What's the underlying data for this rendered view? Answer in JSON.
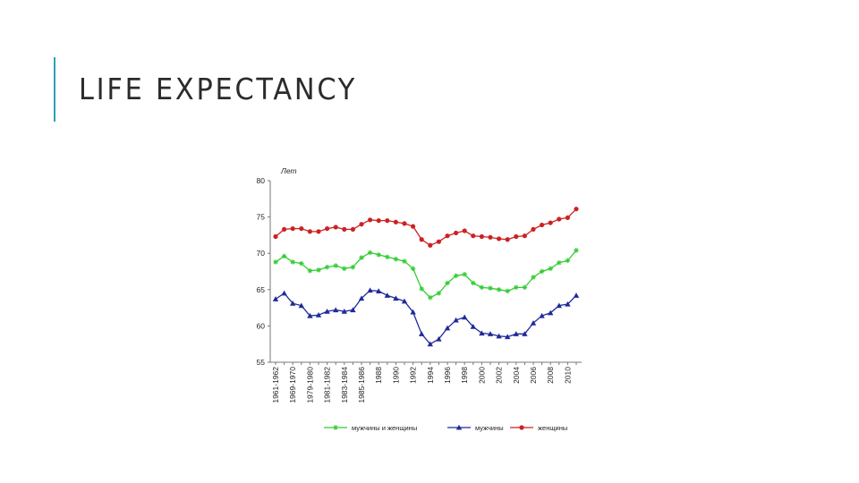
{
  "slide": {
    "title": "LIFE EXPECTANCY",
    "accent_color": "#2aa3b8"
  },
  "chart_data": {
    "type": "line",
    "title": "",
    "ylabel": "Лет",
    "xlabel": "",
    "ylim": [
      55,
      80
    ],
    "yticks": [
      55,
      60,
      65,
      70,
      75,
      80
    ],
    "grid": false,
    "legend_position": "bottom",
    "categories": [
      "1961-1962",
      "",
      "1969-1970",
      "",
      "1979-1980",
      "",
      "1981-1982",
      "",
      "1983-1984",
      "",
      "1985-1986",
      "",
      "1988",
      "",
      "1990",
      "",
      "1992",
      "",
      "1994",
      "",
      "1996",
      "",
      "1998",
      "",
      "2000",
      "",
      "2002",
      "",
      "2004",
      "",
      "2006",
      "",
      "2008",
      "",
      "2010",
      ""
    ],
    "series": [
      {
        "name": "мужчины и женщины",
        "color": "#33cc33",
        "marker": "star",
        "values": [
          68.8,
          69.6,
          68.8,
          68.6,
          67.6,
          67.7,
          68.1,
          68.3,
          67.9,
          68.1,
          69.4,
          70.1,
          69.8,
          69.5,
          69.2,
          68.9,
          67.9,
          65.1,
          63.9,
          64.5,
          65.9,
          66.9,
          67.1,
          65.9,
          65.3,
          65.2,
          65.0,
          64.8,
          65.3,
          65.3,
          66.7,
          67.5,
          67.9,
          68.7,
          69.0,
          70.4
        ]
      },
      {
        "name": "мужчины",
        "color": "#1f2a99",
        "marker": "triangle",
        "values": [
          63.7,
          64.5,
          63.1,
          62.8,
          61.4,
          61.5,
          62.0,
          62.2,
          62.0,
          62.2,
          63.8,
          64.9,
          64.8,
          64.2,
          63.8,
          63.4,
          61.9,
          58.9,
          57.5,
          58.2,
          59.7,
          60.8,
          61.2,
          59.9,
          59.0,
          58.9,
          58.6,
          58.5,
          58.9,
          58.9,
          60.4,
          61.4,
          61.8,
          62.8,
          63.0,
          64.2
        ]
      },
      {
        "name": "женщины",
        "color": "#cc2222",
        "marker": "circle",
        "values": [
          72.3,
          73.3,
          73.4,
          73.4,
          73.0,
          73.0,
          73.4,
          73.6,
          73.3,
          73.3,
          74.0,
          74.6,
          74.5,
          74.5,
          74.3,
          74.1,
          73.7,
          71.9,
          71.1,
          71.6,
          72.4,
          72.8,
          73.1,
          72.4,
          72.3,
          72.2,
          72.0,
          71.9,
          72.3,
          72.4,
          73.3,
          73.9,
          74.2,
          74.7,
          74.9,
          76.1
        ]
      }
    ]
  }
}
